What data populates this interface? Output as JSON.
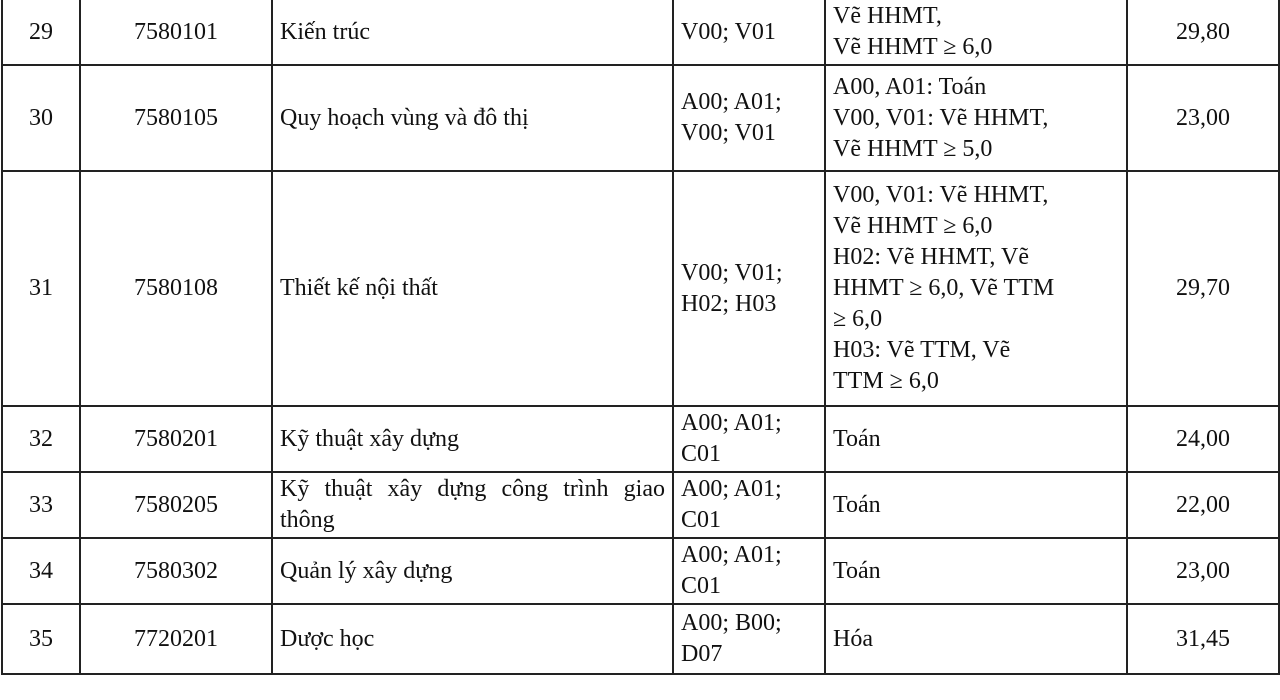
{
  "rows": [
    {
      "stt": "29",
      "code": "7580101",
      "major": "Kiến trúc",
      "combos": "V00; V01",
      "criteria": "Vẽ HHMT,\nVẽ HHMT ≥ 6,0",
      "score": "29,80"
    },
    {
      "stt": "30",
      "code": "7580105",
      "major": "Quy hoạch vùng và đô thị",
      "combos": "A00; A01;\nV00; V01",
      "criteria": "A00, A01: Toán\nV00, V01: Vẽ HHMT,\nVẽ HHMT ≥ 5,0",
      "score": "23,00"
    },
    {
      "stt": "31",
      "code": "7580108",
      "major": "Thiết kế nội thất",
      "combos": "V00; V01;\nH02; H03",
      "criteria": "V00, V01: Vẽ HHMT,\nVẽ HHMT ≥ 6,0\nH02: Vẽ HHMT, Vẽ\nHHMT ≥ 6,0, Vẽ TTM\n≥ 6,0\nH03: Vẽ TTM, Vẽ\nTTM ≥ 6,0",
      "score": "29,70"
    },
    {
      "stt": "32",
      "code": "7580201",
      "major": "Kỹ thuật xây dựng",
      "combos": "A00; A01;\nC01",
      "criteria": "Toán",
      "score": "24,00"
    },
    {
      "stt": "33",
      "code": "7580205",
      "major": "Kỹ thuật xây dựng công trình giao thông",
      "combos": "A00; A01;\nC01",
      "criteria": "Toán",
      "score": "22,00"
    },
    {
      "stt": "34",
      "code": "7580302",
      "major": "Quản lý xây dựng",
      "combos": "A00; A01;\nC01",
      "criteria": "Toán",
      "score": "23,00"
    },
    {
      "stt": "35",
      "code": "7720201",
      "major": "Dược học",
      "combos": "A00; B00;\nD07",
      "criteria": "Hóa",
      "score": "31,45"
    }
  ]
}
